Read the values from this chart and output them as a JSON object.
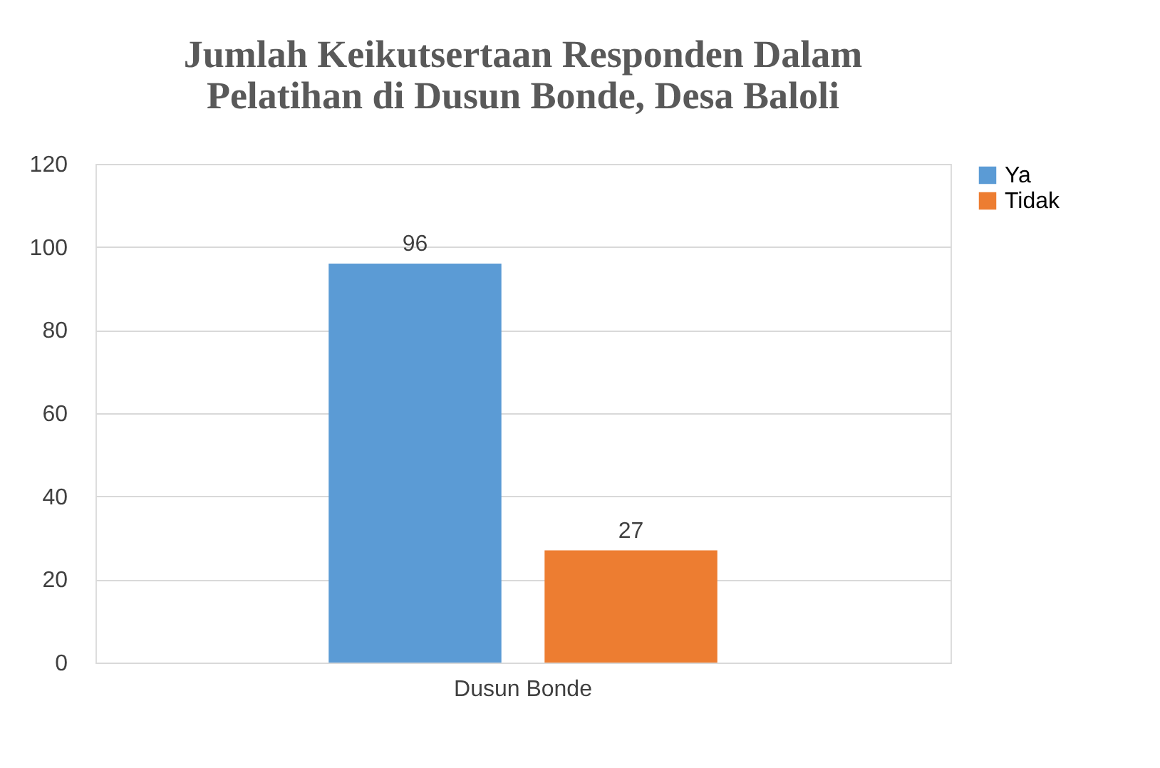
{
  "chart_data": {
    "type": "bar",
    "title": "Jumlah Keikutsertaan Responden Dalam Pelatihan di Dusun Bonde, Desa Baloli",
    "categories": [
      "Dusun Bonde"
    ],
    "series": [
      {
        "name": "Ya",
        "color": "#5b9bd5",
        "values": [
          96
        ]
      },
      {
        "name": "Tidak",
        "color": "#ed7d31",
        "values": [
          27
        ]
      }
    ],
    "ylim": [
      0,
      120
    ],
    "yticks": [
      0,
      20,
      40,
      60,
      80,
      100,
      120
    ],
    "grid": "y",
    "legend": "right",
    "data_labels": true
  }
}
